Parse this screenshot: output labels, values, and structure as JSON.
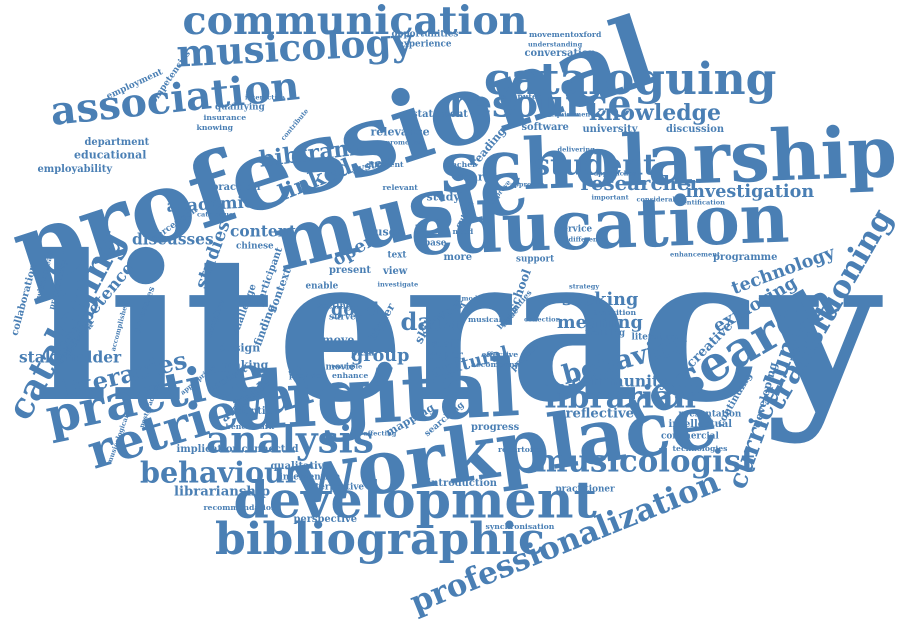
{
  "cloud": {
    "color": "#4a7fb4",
    "words": [
      {
        "text": "literacy",
        "weight": 9.1
      },
      {
        "text": "professional",
        "weight": 4.4
      },
      {
        "text": "digital",
        "weight": 3.6
      },
      {
        "text": "workplace",
        "weight": 3.4
      },
      {
        "text": "education",
        "weight": 3.1
      },
      {
        "text": "music",
        "weight": 3.5
      },
      {
        "text": "scholarship",
        "weight": 3.2
      },
      {
        "text": "development",
        "weight": 2.3
      },
      {
        "text": "retrieval",
        "weight": 2.2
      },
      {
        "text": "research",
        "weight": 2.2
      },
      {
        "text": "practice",
        "weight": 2.2
      },
      {
        "text": "bibliographic",
        "weight": 2.0
      },
      {
        "text": "cataloguing",
        "weight": 2.0
      },
      {
        "text": "communication",
        "weight": 1.8
      },
      {
        "text": "association",
        "weight": 1.8
      },
      {
        "text": "musicology",
        "weight": 1.7
      },
      {
        "text": "resource",
        "weight": 1.7
      },
      {
        "text": "analysis",
        "weight": 1.7
      },
      {
        "text": "cataloging",
        "weight": 1.6
      },
      {
        "text": "transitioning",
        "weight": 1.4
      },
      {
        "text": "professionalization",
        "weight": 1.4
      },
      {
        "text": "librarian",
        "weight": 1.4
      },
      {
        "text": "musicologist",
        "weight": 1.4
      },
      {
        "text": "behaviour",
        "weight": 1.3
      },
      {
        "text": "student",
        "weight": 1.3
      },
      {
        "text": "behavior",
        "weight": 1.2
      },
      {
        "text": "curriculum",
        "weight": 1.2
      },
      {
        "text": "knowledge",
        "weight": 1.0
      },
      {
        "text": "linked",
        "weight": 1.0
      },
      {
        "text": "data",
        "weight": 1.1
      },
      {
        "text": "literacies",
        "weight": 1.1
      },
      {
        "text": "bibframe",
        "weight": 1.0
      },
      {
        "text": "researcher",
        "weight": 0.9
      },
      {
        "text": "investigation",
        "weight": 0.8
      },
      {
        "text": "technology",
        "weight": 0.8
      },
      {
        "text": "exploring",
        "weight": 0.8
      },
      {
        "text": "competence",
        "weight": 0.75
      },
      {
        "text": "studies",
        "weight": 0.8
      },
      {
        "text": "academic",
        "weight": 0.75
      },
      {
        "text": "open",
        "weight": 0.8
      },
      {
        "text": "seeking",
        "weight": 0.8
      },
      {
        "text": "meaning",
        "weight": 0.8
      },
      {
        "text": "good",
        "weight": 0.8
      },
      {
        "text": "group",
        "weight": 0.8
      },
      {
        "text": "cultural",
        "weight": 0.8
      },
      {
        "text": "stakeholder",
        "weight": 0.7
      },
      {
        "text": "discusses",
        "weight": 0.7
      },
      {
        "text": "content",
        "weight": 0.7
      },
      {
        "text": "community",
        "weight": 0.7
      },
      {
        "text": "reflective",
        "weight": 0.6
      },
      {
        "text": "librarianship",
        "weight": 0.6
      },
      {
        "text": "creative",
        "weight": 0.6
      },
      {
        "text": "employability",
        "weight": 0.45
      },
      {
        "text": "educational",
        "weight": 0.5
      },
      {
        "text": "department",
        "weight": 0.45
      },
      {
        "text": "relevance",
        "weight": 0.5
      },
      {
        "text": "statement",
        "weight": 0.45
      },
      {
        "text": "university",
        "weight": 0.45
      },
      {
        "text": "discussion",
        "weight": 0.45
      },
      {
        "text": "software",
        "weight": 0.45
      },
      {
        "text": "conversation",
        "weight": 0.45
      },
      {
        "text": "experience",
        "weight": 0.4
      },
      {
        "text": "opportunities",
        "weight": 0.4
      },
      {
        "text": "movementoxford",
        "weight": 0.35
      },
      {
        "text": "understanding",
        "weight": 0.3
      },
      {
        "text": "computer",
        "weight": 0.35
      },
      {
        "text": "requirement",
        "weight": 0.3
      },
      {
        "text": "employment",
        "weight": 0.4
      },
      {
        "text": "competencies",
        "weight": 0.4
      },
      {
        "text": "qualifying",
        "weight": 0.4
      },
      {
        "text": "insurance",
        "weight": 0.35
      },
      {
        "text": "knowing",
        "weight": 0.35
      },
      {
        "text": "interactive",
        "weight": 0.3
      },
      {
        "text": "collaboration",
        "weight": 0.45
      },
      {
        "text": "widespread",
        "weight": 0.35
      },
      {
        "text": "preparatory",
        "weight": 0.35
      },
      {
        "text": "framework",
        "weight": 0.4
      },
      {
        "text": "perception",
        "weight": 0.4
      },
      {
        "text": "practical",
        "weight": 0.45
      },
      {
        "text": "system",
        "weight": 0.5
      },
      {
        "text": "search",
        "weight": 0.5
      },
      {
        "text": "study",
        "weight": 0.5
      },
      {
        "text": "reading",
        "weight": 0.5
      },
      {
        "text": "user",
        "weight": 0.5
      },
      {
        "text": "chinese",
        "weight": 0.4
      },
      {
        "text": "present",
        "weight": 0.45
      },
      {
        "text": "view",
        "weight": 0.45
      },
      {
        "text": "enable",
        "weight": 0.4
      },
      {
        "text": "setting",
        "weight": 0.4
      },
      {
        "text": "survey",
        "weight": 0.4
      },
      {
        "text": "move",
        "weight": 0.5
      },
      {
        "text": "skill",
        "weight": 0.55
      },
      {
        "text": "work",
        "weight": 0.55
      },
      {
        "text": "paper",
        "weight": 0.5
      },
      {
        "text": "staff",
        "weight": 0.5
      },
      {
        "text": "higher",
        "weight": 0.5
      },
      {
        "text": "school",
        "weight": 0.55
      },
      {
        "text": "more",
        "weight": 0.45
      },
      {
        "text": "text",
        "weight": 0.4
      },
      {
        "text": "service",
        "weight": 0.4
      },
      {
        "text": "support",
        "weight": 0.4
      },
      {
        "text": "processes",
        "weight": 0.4
      },
      {
        "text": "finding",
        "weight": 0.5
      },
      {
        "text": "context",
        "weight": 0.5
      },
      {
        "text": "challenge",
        "weight": 0.45
      },
      {
        "text": "participant",
        "weight": 0.45
      },
      {
        "text": "design",
        "weight": 0.5
      },
      {
        "text": "making",
        "weight": 0.5
      },
      {
        "text": "concept",
        "weight": 0.45
      },
      {
        "text": "available",
        "weight": 0.55
      },
      {
        "text": "adoption",
        "weight": 0.45
      },
      {
        "text": "benchmark",
        "weight": 0.35
      },
      {
        "text": "implication",
        "weight": 0.45
      },
      {
        "text": "connected",
        "weight": 0.45
      },
      {
        "text": "qualitative",
        "weight": 0.45
      },
      {
        "text": "intervention",
        "weight": 0.4
      },
      {
        "text": "interpretive",
        "weight": 0.4
      },
      {
        "text": "introduction",
        "weight": 0.45
      },
      {
        "text": "perspective",
        "weight": 0.45
      },
      {
        "text": "mapping",
        "weight": 0.5
      },
      {
        "text": "searching",
        "weight": 0.4
      },
      {
        "text": "progress",
        "weight": 0.45
      },
      {
        "text": "repertoire",
        "weight": 0.35
      },
      {
        "text": "synchronisation",
        "weight": 0.35
      },
      {
        "text": "recommendation",
        "weight": 0.35
      },
      {
        "text": "practitioner",
        "weight": 0.4
      },
      {
        "text": "commercial",
        "weight": 0.4
      },
      {
        "text": "technologies",
        "weight": 0.35
      },
      {
        "text": "intellectual",
        "weight": 0.45
      },
      {
        "text": "presentation",
        "weight": 0.4
      },
      {
        "text": "continuing",
        "weight": 0.45
      },
      {
        "text": "developing",
        "weight": 0.5
      },
      {
        "text": "programme",
        "weight": 0.45
      },
      {
        "text": "literature",
        "weight": 0.4
      },
      {
        "text": "training",
        "weight": 0.4
      },
      {
        "text": "transition",
        "weight": 0.35
      },
      {
        "text": "movie",
        "weight": 0.4
      },
      {
        "text": "project",
        "weight": 0.4
      },
      {
        "text": "enhance",
        "weight": 0.35
      },
      {
        "text": "provide",
        "weight": 0.35
      },
      {
        "text": "effective",
        "weight": 0.35
      },
      {
        "text": "accompany",
        "weight": 0.35
      },
      {
        "text": "musical",
        "weight": 0.35
      },
      {
        "text": "humanities",
        "weight": 0.35
      },
      {
        "text": "identification",
        "weight": 0.3
      },
      {
        "text": "considerable",
        "weight": 0.3
      },
      {
        "text": "important",
        "weight": 0.3
      },
      {
        "text": "approaches",
        "weight": 0.3
      },
      {
        "text": "enhancement",
        "weight": 0.3
      },
      {
        "text": "difference",
        "weight": 0.3
      },
      {
        "text": "teacher",
        "weight": 0.35
      },
      {
        "text": "different",
        "weight": 0.35
      },
      {
        "text": "relevant",
        "weight": 0.35
      },
      {
        "text": "pksh",
        "weight": 0.4
      },
      {
        "text": "base",
        "weight": 0.4
      },
      {
        "text": "need",
        "weight": 0.35
      },
      {
        "text": "output",
        "weight": 0.35
      },
      {
        "text": "model",
        "weight": 0.3
      },
      {
        "text": "issue",
        "weight": 0.35
      },
      {
        "text": "accomplished",
        "weight": 0.3
      },
      {
        "text": "discipline",
        "weight": 0.35
      },
      {
        "text": "musicological",
        "weight": 0.3
      },
      {
        "text": "postgraduate",
        "weight": 0.3
      },
      {
        "text": "appropriate",
        "weight": 0.3
      },
      {
        "text": "promotion",
        "weight": 0.3
      },
      {
        "text": "contribute",
        "weight": 0.3
      },
      {
        "text": "catalogue",
        "weight": 0.3
      },
      {
        "text": "improve",
        "weight": 0.3
      },
      {
        "text": "approach",
        "weight": 0.3
      },
      {
        "text": "affecting",
        "weight": 0.3
      },
      {
        "text": "example",
        "weight": 0.3
      },
      {
        "text": "investigate",
        "weight": 0.3
      },
      {
        "text": "strategy",
        "weight": 0.3
      },
      {
        "text": "collection",
        "weight": 0.3
      },
      {
        "text": "delivering",
        "weight": 0.3
      }
    ]
  }
}
